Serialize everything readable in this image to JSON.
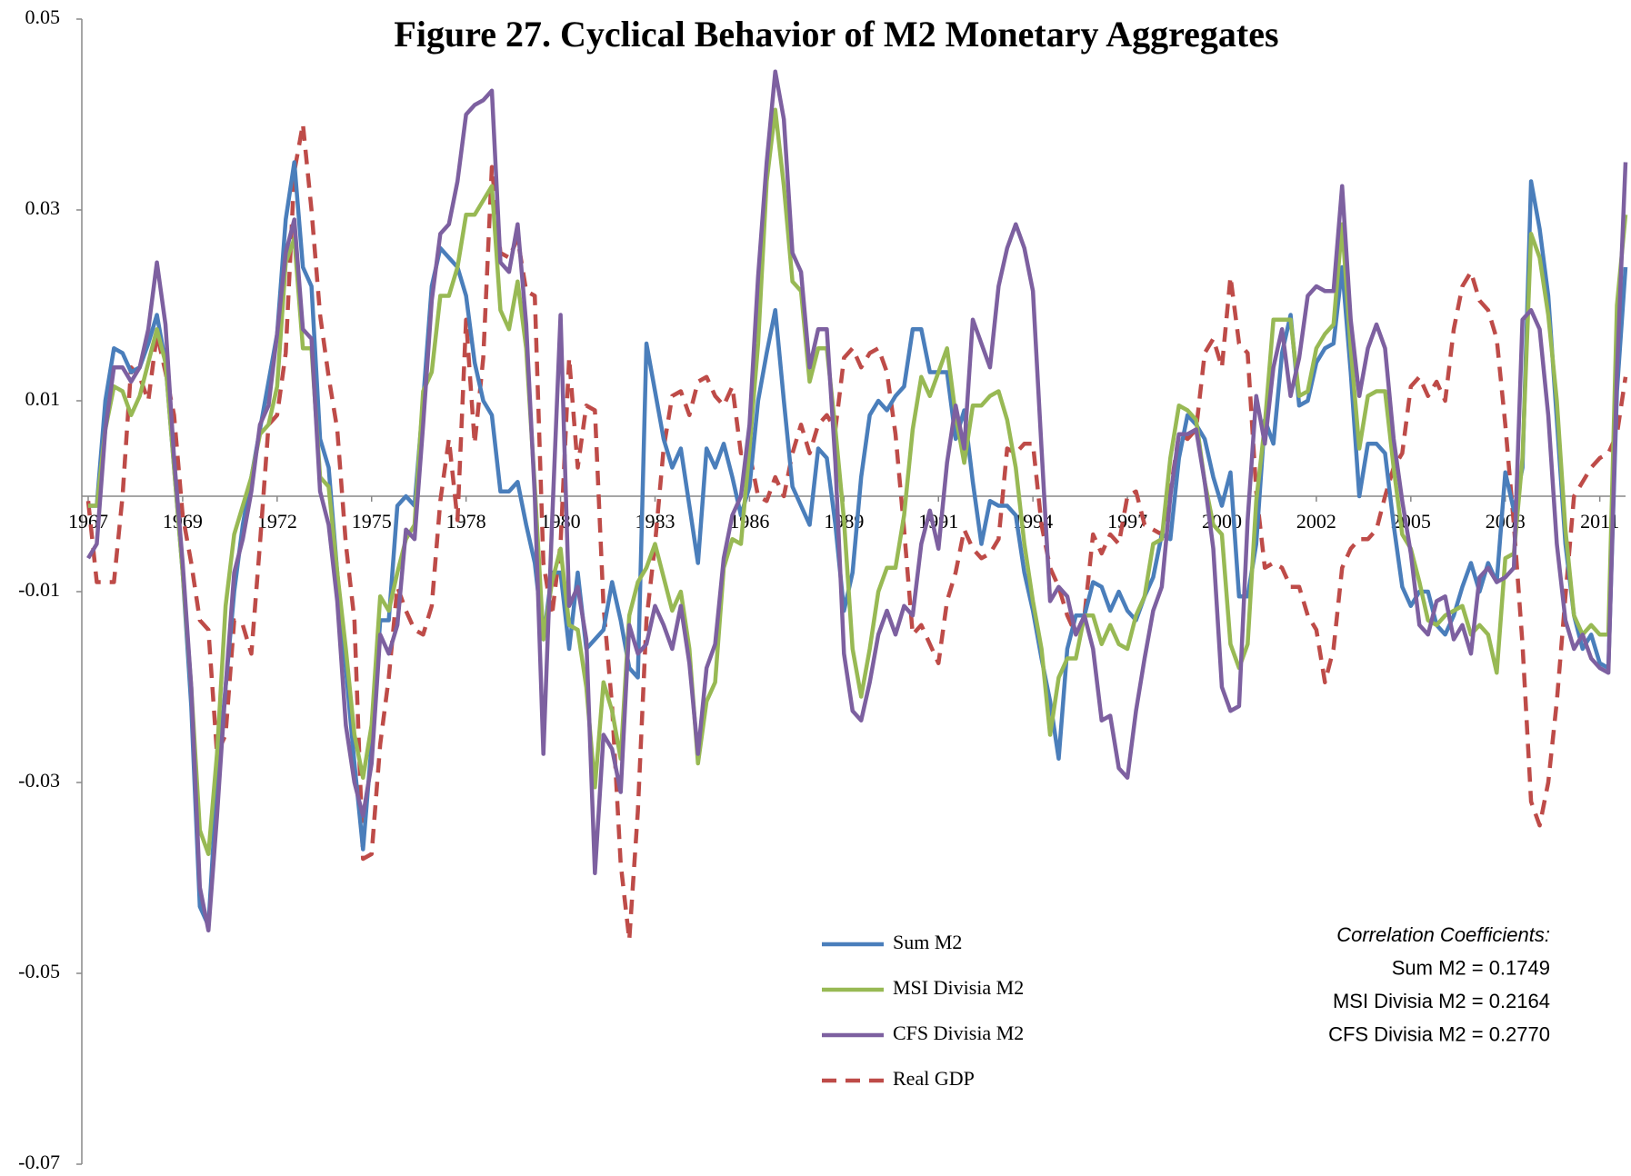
{
  "chart_data": {
    "type": "line",
    "title": "Figure 27.  Cyclical Behavior of M2 Monetary Aggregates",
    "categories": [
      "1967",
      null,
      null,
      null,
      null,
      null,
      null,
      null,
      null,
      null,
      null,
      "1969",
      null,
      null,
      null,
      null,
      null,
      null,
      null,
      null,
      null,
      null,
      "1972",
      null,
      null,
      null,
      null,
      null,
      null,
      null,
      null,
      null,
      null,
      "1975",
      null,
      null,
      null,
      null,
      null,
      null,
      null,
      null,
      null,
      null,
      "1978",
      null,
      null,
      null,
      null,
      null,
      null,
      null,
      null,
      null,
      null,
      "1980",
      null,
      null,
      null,
      null,
      null,
      null,
      null,
      null,
      null,
      null,
      "1983",
      null,
      null,
      null,
      null,
      null,
      null,
      null,
      null,
      null,
      null,
      "1986",
      null,
      null,
      null,
      null,
      null,
      null,
      null,
      null,
      null,
      null,
      "1989",
      null,
      null,
      null,
      null,
      null,
      null,
      null,
      null,
      null,
      null,
      "1991",
      null,
      null,
      null,
      null,
      null,
      null,
      null,
      null,
      null,
      null,
      "1994",
      null,
      null,
      null,
      null,
      null,
      null,
      null,
      null,
      null,
      null,
      "1997",
      null,
      null,
      null,
      null,
      null,
      null,
      null,
      null,
      null,
      null,
      "2000",
      null,
      null,
      null,
      null,
      null,
      null,
      null,
      null,
      null,
      null,
      "2002",
      null,
      null,
      null,
      null,
      null,
      null,
      null,
      null,
      null,
      null,
      "2005",
      null,
      null,
      null,
      null,
      null,
      null,
      null,
      null,
      null,
      null,
      "2008",
      null,
      null,
      null,
      null,
      null,
      null,
      null,
      null,
      null,
      null,
      "2011",
      null,
      null,
      null
    ],
    "ylim": [
      -0.07,
      0.05
    ],
    "yticks": [
      -0.07,
      -0.05,
      -0.03,
      -0.01,
      0.01,
      0.03,
      0.05
    ],
    "series": [
      {
        "name": "Sum M2",
        "color": "#4a7ebb",
        "dashed": false,
        "values": [
          -0.001,
          -0.001,
          0.01,
          0.0155,
          0.015,
          0.013,
          0.0135,
          0.016,
          0.019,
          0.014,
          0.003,
          -0.008,
          -0.022,
          -0.043,
          -0.045,
          -0.03,
          -0.02,
          -0.01,
          -0.003,
          0.002,
          0.007,
          0.012,
          0.017,
          0.029,
          0.035,
          0.024,
          0.022,
          0.006,
          0.003,
          -0.008,
          -0.018,
          -0.028,
          -0.037,
          -0.026,
          -0.013,
          -0.013,
          -0.001,
          0.0,
          -0.001,
          0.01,
          0.022,
          0.026,
          0.025,
          0.024,
          0.021,
          0.014,
          0.01,
          0.0085,
          0.0005,
          0.0005,
          0.0015,
          -0.003,
          -0.007,
          -0.015,
          -0.008,
          -0.008,
          -0.016,
          -0.008,
          -0.016,
          -0.015,
          -0.014,
          -0.009,
          -0.013,
          -0.018,
          -0.019,
          0.016,
          0.011,
          0.006,
          0.003,
          0.005,
          -0.001,
          -0.007,
          0.005,
          0.003,
          0.0055,
          0.002,
          -0.002,
          0.001,
          0.01,
          0.015,
          0.0195,
          0.01,
          0.001,
          -0.001,
          -0.003,
          0.005,
          0.004,
          -0.003,
          -0.012,
          -0.008,
          0.002,
          0.0085,
          0.01,
          0.009,
          0.0105,
          0.0115,
          0.0175,
          0.0175,
          0.013,
          0.013,
          0.013,
          0.006,
          0.009,
          0.0015,
          -0.005,
          -0.0005,
          -0.001,
          -0.001,
          -0.002,
          -0.008,
          -0.012,
          -0.017,
          -0.0215,
          -0.0275,
          -0.016,
          -0.0125,
          -0.0125,
          -0.009,
          -0.0095,
          -0.012,
          -0.01,
          -0.012,
          -0.013,
          -0.0105,
          -0.0085,
          -0.004,
          -0.0045,
          0.004,
          0.0085,
          0.0075,
          0.006,
          0.002,
          -0.001,
          0.0025,
          -0.0105,
          -0.0105,
          -0.005,
          0.008,
          0.0055,
          0.015,
          0.019,
          0.0095,
          0.01,
          0.014,
          0.0155,
          0.016,
          0.024,
          0.013,
          0.0,
          0.0055,
          0.0055,
          0.0045,
          -0.003,
          -0.0095,
          -0.0115,
          -0.01,
          -0.01,
          -0.0135,
          -0.0145,
          -0.0125,
          -0.0095,
          -0.007,
          -0.01,
          -0.007,
          -0.009,
          0.0025,
          -0.0015,
          0.003,
          0.033,
          0.028,
          0.021,
          0.008,
          -0.005,
          -0.0125,
          -0.016,
          -0.0145,
          -0.0175,
          -0.018,
          0.011,
          0.024
        ]
      },
      {
        "name": "MSI Divisia M2",
        "color": "#98b954",
        "dashed": false,
        "values": [
          -0.001,
          -0.001,
          0.007,
          0.0115,
          0.011,
          0.0085,
          0.0105,
          0.014,
          0.0175,
          0.014,
          0.003,
          -0.008,
          -0.02,
          -0.035,
          -0.0375,
          -0.027,
          -0.0115,
          -0.004,
          -0.001,
          0.002,
          0.0065,
          0.0075,
          0.0115,
          0.0245,
          0.027,
          0.0155,
          0.0155,
          0.002,
          0.001,
          -0.008,
          -0.016,
          -0.025,
          -0.0295,
          -0.024,
          -0.0105,
          -0.012,
          -0.008,
          -0.0045,
          -0.003,
          0.011,
          0.013,
          0.021,
          0.021,
          0.024,
          0.0295,
          0.0295,
          0.031,
          0.0325,
          0.0195,
          0.0175,
          0.0225,
          0.0155,
          0.001,
          -0.015,
          -0.009,
          -0.0055,
          -0.0135,
          -0.014,
          -0.02,
          -0.0305,
          -0.0195,
          -0.0225,
          -0.0275,
          -0.0125,
          -0.009,
          -0.0075,
          -0.005,
          -0.0085,
          -0.012,
          -0.01,
          -0.016,
          -0.028,
          -0.0215,
          -0.0195,
          -0.0075,
          -0.0045,
          -0.005,
          0.005,
          0.016,
          0.033,
          0.0405,
          0.0325,
          0.0225,
          0.0215,
          0.012,
          0.0155,
          0.0155,
          0.007,
          -0.0025,
          -0.016,
          -0.021,
          -0.016,
          -0.01,
          -0.0075,
          -0.0075,
          -0.002,
          0.007,
          0.0125,
          0.0105,
          0.013,
          0.0155,
          0.0085,
          0.0035,
          0.0095,
          0.0095,
          0.0105,
          0.011,
          0.008,
          0.003,
          -0.005,
          -0.011,
          -0.016,
          -0.025,
          -0.019,
          -0.017,
          -0.017,
          -0.0125,
          -0.0125,
          -0.0155,
          -0.0135,
          -0.0155,
          -0.016,
          -0.0125,
          -0.0105,
          -0.005,
          -0.0045,
          0.004,
          0.0095,
          0.009,
          0.008,
          0.0015,
          -0.003,
          -0.004,
          -0.0155,
          -0.018,
          -0.0155,
          -0.0005,
          0.0075,
          0.0185,
          0.0185,
          0.0185,
          0.0105,
          0.011,
          0.0155,
          0.017,
          0.018,
          0.0285,
          0.0155,
          0.005,
          0.0105,
          0.011,
          0.011,
          0.003,
          -0.004,
          -0.0055,
          -0.009,
          -0.013,
          -0.0135,
          -0.0125,
          -0.012,
          -0.0115,
          -0.0145,
          -0.0135,
          -0.0145,
          -0.0185,
          -0.0065,
          -0.006,
          0.004,
          0.0275,
          0.025,
          0.019,
          0.01,
          -0.0035,
          -0.0125,
          -0.0145,
          -0.0135,
          -0.0145,
          -0.0145,
          0.02,
          0.0295
        ]
      },
      {
        "name": "CFS Divisia M2",
        "color": "#7d60a0",
        "dashed": false,
        "values": [
          -0.0065,
          -0.005,
          0.007,
          0.0135,
          0.0135,
          0.012,
          0.0135,
          0.0175,
          0.0245,
          0.018,
          0.004,
          -0.007,
          -0.02,
          -0.041,
          -0.0455,
          -0.0335,
          -0.02,
          -0.008,
          -0.0045,
          0.0005,
          0.0075,
          0.0095,
          0.017,
          0.0255,
          0.029,
          0.0175,
          0.0165,
          0.0005,
          -0.003,
          -0.011,
          -0.024,
          -0.03,
          -0.0335,
          -0.028,
          -0.0145,
          -0.0165,
          -0.0135,
          -0.0035,
          -0.0045,
          0.0075,
          0.0205,
          0.0275,
          0.0285,
          0.033,
          0.04,
          0.041,
          0.0415,
          0.0425,
          0.0245,
          0.0235,
          0.0285,
          0.018,
          0.0,
          -0.027,
          -0.003,
          0.019,
          -0.0115,
          -0.0095,
          -0.015,
          -0.0395,
          -0.025,
          -0.0265,
          -0.031,
          -0.0135,
          -0.0165,
          -0.0155,
          -0.0115,
          -0.0135,
          -0.016,
          -0.0115,
          -0.0175,
          -0.027,
          -0.018,
          -0.0155,
          -0.0065,
          -0.002,
          0.0,
          0.0075,
          0.023,
          0.035,
          0.0445,
          0.0395,
          0.0255,
          0.0235,
          0.0135,
          0.0175,
          0.0175,
          0.0035,
          -0.0165,
          -0.0225,
          -0.0235,
          -0.0195,
          -0.0145,
          -0.012,
          -0.0145,
          -0.0115,
          -0.0125,
          -0.005,
          -0.0015,
          -0.0055,
          0.0035,
          0.0095,
          0.005,
          0.0185,
          0.016,
          0.0135,
          0.022,
          0.026,
          0.0285,
          0.026,
          0.0215,
          0.005,
          -0.011,
          -0.0095,
          -0.0105,
          -0.0145,
          -0.0125,
          -0.016,
          -0.0235,
          -0.023,
          -0.0285,
          -0.0295,
          -0.0225,
          -0.017,
          -0.012,
          -0.0095,
          0.0,
          0.0065,
          0.0065,
          0.007,
          0.0015,
          -0.0055,
          -0.02,
          -0.0225,
          -0.022,
          -0.0025,
          0.0105,
          0.0055,
          0.0135,
          0.0175,
          0.0105,
          0.0145,
          0.021,
          0.022,
          0.0215,
          0.0215,
          0.0325,
          0.0185,
          0.0105,
          0.0155,
          0.018,
          0.0155,
          0.006,
          -0.0005,
          -0.006,
          -0.0135,
          -0.0145,
          -0.011,
          -0.0105,
          -0.015,
          -0.0135,
          -0.0165,
          -0.0085,
          -0.0075,
          -0.009,
          -0.0085,
          -0.0075,
          0.0185,
          0.0195,
          0.0175,
          0.0085,
          -0.005,
          -0.013,
          -0.016,
          -0.0145,
          -0.017,
          -0.018,
          -0.0185,
          0.013,
          0.035
        ]
      },
      {
        "name": "Real GDP",
        "color": "#be4b48",
        "dashed": true,
        "values": [
          -0.0005,
          -0.009,
          -0.009,
          -0.009,
          0.0,
          0.0135,
          0.0125,
          0.01,
          0.017,
          0.013,
          0.0085,
          -0.002,
          -0.007,
          -0.013,
          -0.014,
          -0.027,
          -0.025,
          -0.013,
          -0.0135,
          -0.0165,
          -0.005,
          0.0075,
          0.0085,
          0.015,
          0.034,
          0.039,
          0.03,
          0.019,
          0.0125,
          0.007,
          -0.005,
          -0.013,
          -0.038,
          -0.0375,
          -0.026,
          -0.019,
          -0.0095,
          -0.012,
          -0.014,
          -0.0145,
          -0.0115,
          -0.0005,
          0.006,
          -0.0025,
          0.0185,
          0.0055,
          0.0145,
          0.0345,
          0.0255,
          0.025,
          0.027,
          0.0215,
          0.021,
          -0.007,
          -0.0125,
          -0.005,
          0.0145,
          0.003,
          0.0095,
          0.009,
          -0.0115,
          -0.022,
          -0.0385,
          -0.0465,
          -0.033,
          -0.013,
          -0.005,
          0.005,
          0.0105,
          0.011,
          0.0085,
          0.012,
          0.0125,
          0.0105,
          0.0095,
          0.0115,
          0.0045,
          0.0045,
          0.0,
          -0.0005,
          0.002,
          0.0,
          0.0045,
          0.0075,
          0.0045,
          0.0075,
          0.0085,
          0.007,
          0.0145,
          0.0155,
          0.0135,
          0.015,
          0.0155,
          0.013,
          0.0065,
          -0.0035,
          -0.0145,
          -0.0135,
          -0.0155,
          -0.0175,
          -0.011,
          -0.008,
          -0.0035,
          -0.0055,
          -0.0065,
          -0.006,
          -0.0045,
          0.005,
          0.0045,
          0.0055,
          0.0055,
          -0.003,
          -0.0075,
          -0.0095,
          -0.0125,
          -0.0145,
          -0.0125,
          -0.004,
          -0.006,
          -0.004,
          -0.005,
          0.0,
          0.0005,
          -0.003,
          -0.0035,
          -0.004,
          0.0005,
          0.0065,
          0.006,
          0.007,
          0.015,
          0.0165,
          0.0135,
          0.023,
          0.016,
          0.015,
          0.0005,
          -0.0075,
          -0.007,
          -0.0075,
          -0.0095,
          -0.0095,
          -0.0125,
          -0.014,
          -0.0195,
          -0.016,
          -0.0075,
          -0.0055,
          -0.0045,
          -0.0045,
          -0.0035,
          0.0,
          0.003,
          0.0045,
          0.0115,
          0.0125,
          0.0105,
          0.012,
          0.01,
          0.0175,
          0.022,
          0.0235,
          0.0205,
          0.0195,
          0.0165,
          0.0075,
          -0.003,
          -0.0155,
          -0.032,
          -0.0345,
          -0.03,
          -0.0215,
          -0.0105,
          0.0,
          0.0015,
          0.003,
          0.004,
          0.0045,
          0.0065,
          0.0125
        ]
      }
    ],
    "annotations": [
      "Correlation Coefficients:",
      "Sum M2 = 0.1749",
      "MSI Divisia M2 = 0.2164",
      "CFS Divisia M2 = 0.2770"
    ]
  }
}
